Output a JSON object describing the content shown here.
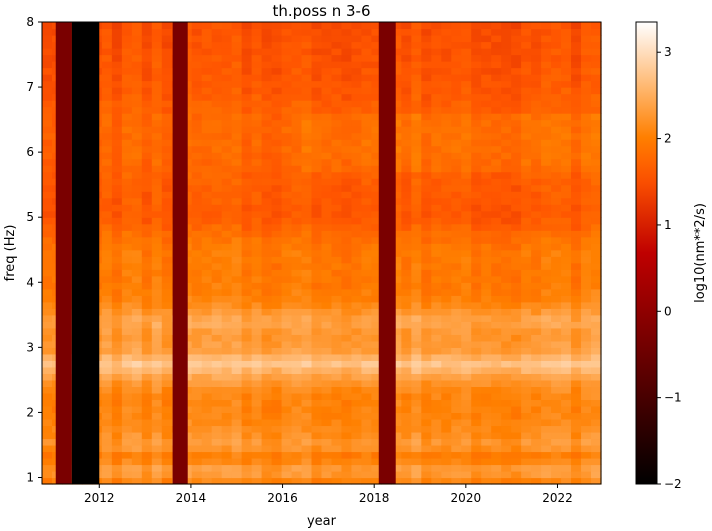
{
  "chart_data": {
    "type": "heatmap",
    "title": "th.poss n 3-6",
    "xlabel": "year",
    "ylabel": "freq (Hz)",
    "xlim": [
      2010.75,
      2022.95
    ],
    "ylim": [
      0.9,
      8.0
    ],
    "x_ticks": [
      2012,
      2014,
      2016,
      2018,
      2020,
      2022
    ],
    "x_tick_labels": [
      "2012",
      "2014",
      "2016",
      "2018",
      "2020",
      "2022"
    ],
    "y_ticks": [
      1,
      2,
      3,
      4,
      5,
      6,
      7,
      8
    ],
    "y_tick_labels": [
      "1",
      "2",
      "3",
      "4",
      "5",
      "6",
      "7",
      "8"
    ],
    "colorbar": {
      "label": "log10(nm**2/s)",
      "range": [
        -2,
        3.35
      ],
      "ticks": [
        -2,
        -1,
        0,
        1,
        2,
        3
      ],
      "tick_labels": [
        "−2",
        "−1",
        "0",
        "1",
        "2",
        "3"
      ],
      "colormap": "gist_heat"
    },
    "gap_bands": [
      {
        "x0": 2011.05,
        "x1": 2011.4,
        "value": -0.3
      },
      {
        "x0": 2011.4,
        "x1": 2012.0,
        "value": -2.0
      },
      {
        "x0": 2013.6,
        "x1": 2013.93,
        "value": -0.3
      },
      {
        "x0": 2018.1,
        "x1": 2018.47,
        "value": -0.3
      }
    ],
    "freq_profile": [
      {
        "f": 0.9,
        "v": 2.0
      },
      {
        "f": 1.0,
        "v": 2.15
      },
      {
        "f": 1.1,
        "v": 2.4
      },
      {
        "f": 1.25,
        "v": 2.1
      },
      {
        "f": 1.35,
        "v": 2.0
      },
      {
        "f": 1.5,
        "v": 2.3
      },
      {
        "f": 1.7,
        "v": 2.15
      },
      {
        "f": 2.0,
        "v": 2.05
      },
      {
        "f": 2.3,
        "v": 2.1
      },
      {
        "f": 2.5,
        "v": 2.3
      },
      {
        "f": 2.75,
        "v": 2.75
      },
      {
        "f": 2.95,
        "v": 2.35
      },
      {
        "f": 3.2,
        "v": 2.25
      },
      {
        "f": 3.4,
        "v": 2.45
      },
      {
        "f": 3.7,
        "v": 2.05
      },
      {
        "f": 4.0,
        "v": 1.95
      },
      {
        "f": 4.5,
        "v": 1.95
      },
      {
        "f": 4.7,
        "v": 1.85
      },
      {
        "f": 5.0,
        "v": 1.6
      },
      {
        "f": 5.5,
        "v": 1.65
      },
      {
        "f": 6.0,
        "v": 1.75
      },
      {
        "f": 6.5,
        "v": 1.75
      },
      {
        "f": 7.0,
        "v": 1.6
      },
      {
        "f": 7.5,
        "v": 1.55
      },
      {
        "f": 8.0,
        "v": 1.5
      }
    ]
  }
}
